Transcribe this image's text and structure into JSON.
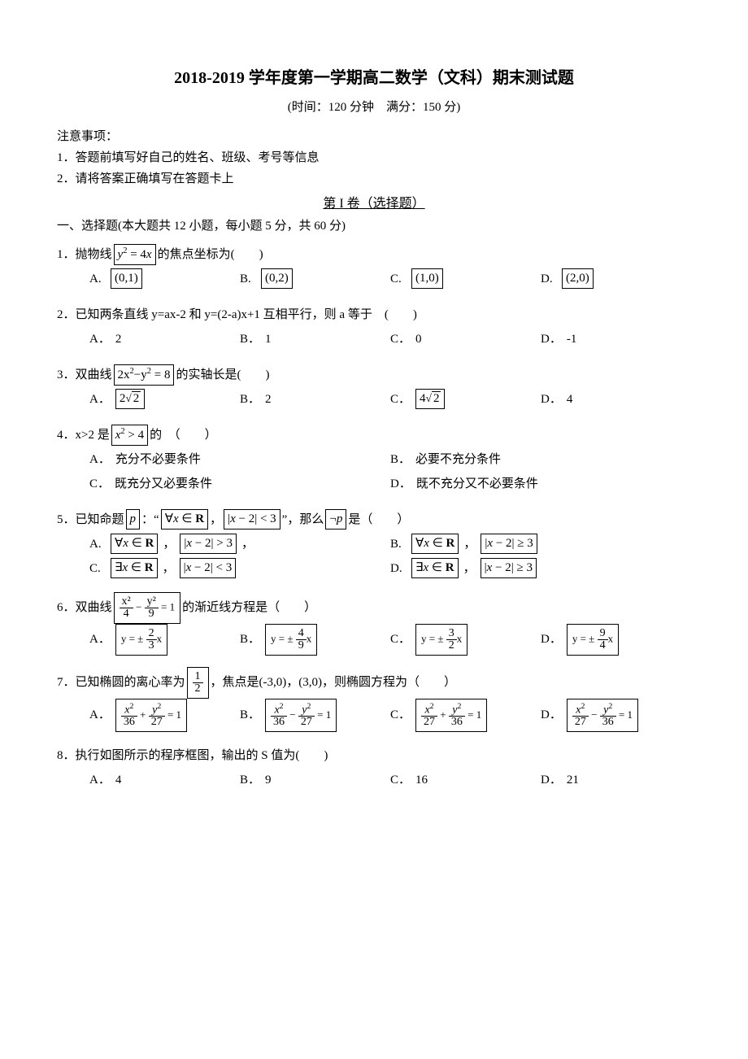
{
  "title": "2018-2019 学年度第一学期高二数学（文科）期末测试题",
  "subtitle": "(时间：120 分钟　满分：150 分)",
  "notice_header": "注意事项：",
  "notice1": "1．答题前填写好自己的姓名、班级、考号等信息",
  "notice2": "2．请将答案正确填写在答题卡上",
  "section1_header": "第 I 卷（选择题）",
  "section1_title": "一、选择题(本大题共 12 小题，每小题 5 分，共 60 分)",
  "q1": {
    "prefix": "1．抛物线",
    "formula": "y² = 4x",
    "suffix": "的焦点坐标为(　　)",
    "A_label": "A.",
    "A": "(0,1)",
    "B_label": "B.",
    "B": "(0,2)",
    "C_label": "C.",
    "C": "(1,0)",
    "D_label": "D.",
    "D": "(2,0)"
  },
  "q2": {
    "text": "2．已知两条直线 y=ax-2 和 y=(2-a)x+1 互相平行，则 a 等于　(　　)",
    "A_label": "A．",
    "A": "2",
    "B_label": "B．",
    "B": "1",
    "C_label": "C．",
    "C": "0",
    "D_label": "D．",
    "D": "-1"
  },
  "q3": {
    "prefix": "3．双曲线",
    "formula": "2x²−y² = 8",
    "suffix": "的实轴长是(　　)",
    "A_label": "A．",
    "A": "2√2",
    "B_label": "B．",
    "B": "2",
    "C_label": "C．",
    "C": "4√2",
    "D_label": "D．",
    "D": "4"
  },
  "q4": {
    "prefix": "4．x>2 是",
    "formula": "x² > 4",
    "suffix": "的　（　　）",
    "A_label": "A．",
    "A": "充分不必要条件",
    "B_label": "B．",
    "B": "必要不充分条件",
    "C_label": "C．",
    "C": "既充分又必要条件",
    "D_label": "D．",
    "D": "既不充分又不必要条件"
  },
  "q5": {
    "prefix": "5．已知命题",
    "p_box": "p",
    "mid1": "：“",
    "f1": "∀x ∈ R",
    "comma1": "，",
    "f2": "|x − 2| < 3",
    "mid2": "”，那么",
    "neg_p": "¬p",
    "mid3": "是（　　）",
    "A_label": "A.",
    "A1": "∀x ∈ R",
    "A_comma": "，",
    "A2": "|x − 2| > 3",
    "A_suffix": "，",
    "B_label": "B.",
    "B1": "∀x ∈ R",
    "B_comma": "，",
    "B2": "|x − 2| ≥ 3",
    "C_label": "C.",
    "C1": "∃x ∈ R",
    "C_comma": "，",
    "C2": "|x − 2| < 3",
    "D_label": "D.",
    "D1": "∃x ∈ R",
    "D_comma": "，",
    "D2": "|x − 2| ≥ 3"
  },
  "q6": {
    "prefix": "6．双曲线",
    "suffix": "的渐近线方程是（　　）",
    "A_label": "A．",
    "B_label": "B．",
    "C_label": "C．",
    "D_label": "D．",
    "A_num": "2",
    "A_den": "3",
    "B_num": "4",
    "B_den": "9",
    "C_num": "3",
    "C_den": "2",
    "D_num": "9",
    "D_den": "4",
    "main_a": "x²",
    "main_a_den": "4",
    "main_b": "y²",
    "main_b_den": "9",
    "main_eq": "= 1"
  },
  "q7": {
    "prefix": "7．已知椭圆的离心率为",
    "half_num": "1",
    "half_den": "2",
    "suffix": "，焦点是(-3,0)，(3,0)，则椭圆方程为（　　）",
    "A_label": "A．",
    "B_label": "B．",
    "C_label": "C．",
    "D_label": "D．",
    "A_x_den": "36",
    "A_y_den": "27",
    "A_op": "+",
    "B_x_den": "36",
    "B_y_den": "27",
    "B_op": "−",
    "C_x_den": "27",
    "C_y_den": "36",
    "C_op": "+",
    "D_x_den": "27",
    "D_y_den": "36",
    "D_op": "−",
    "x2": "x²",
    "y2": "y²",
    "eq1": "= 1"
  },
  "q8": {
    "text": "8．执行如图所示的程序框图，输出的 S 值为(　　)",
    "A_label": "A．",
    "A": "4",
    "B_label": "B．",
    "B": "9",
    "C_label": "C．",
    "C": "16",
    "D_label": "D．",
    "D": "21"
  }
}
